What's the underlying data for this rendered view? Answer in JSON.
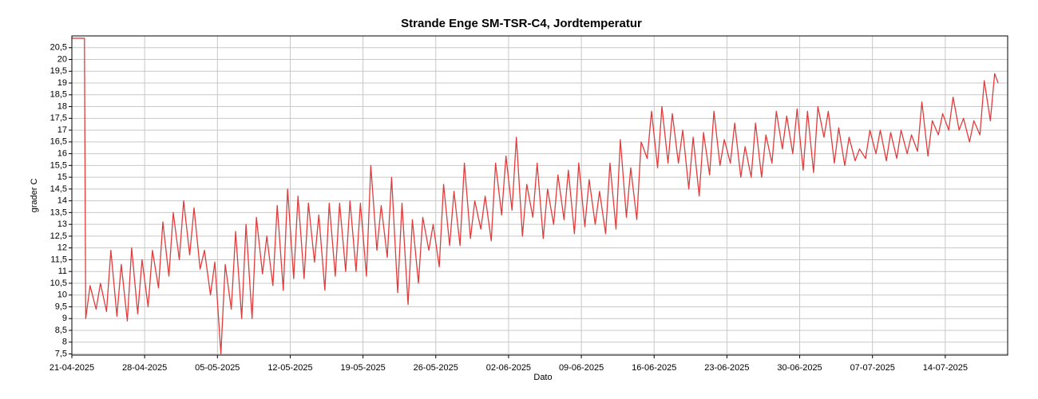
{
  "chart_data": {
    "type": "line",
    "title": "Strande Enge SM-TSR-C4, Jordtemperatur",
    "x_label": "Dato",
    "y_label": "grader C",
    "grid": true,
    "xlim": [
      "21-04-2025",
      "20-07-2025"
    ],
    "xticks": [
      "21-04-2025",
      "28-04-2025",
      "05-05-2025",
      "12-05-2025",
      "19-05-2025",
      "26-05-2025",
      "02-06-2025",
      "09-06-2025",
      "16-06-2025",
      "23-06-2025",
      "30-06-2025",
      "07-07-2025",
      "14-07-2025"
    ],
    "ylim": [
      7.45,
      21.0
    ],
    "yticks": [
      {
        "value": 7.5,
        "label": "7,5"
      },
      8,
      {
        "value": 8.5,
        "label": "8,5"
      },
      9,
      {
        "value": 9.5,
        "label": "9,5"
      },
      10,
      {
        "value": 10.5,
        "label": "10,5"
      },
      11,
      {
        "value": 11.5,
        "label": "11,5"
      },
      12,
      {
        "value": 12.5,
        "label": "12,5"
      },
      13,
      {
        "value": 13.5,
        "label": "13,5"
      },
      14,
      {
        "value": 14.5,
        "label": "14,5"
      },
      15,
      {
        "value": 15.5,
        "label": "15,5"
      },
      16,
      {
        "value": 16.5,
        "label": "16,5"
      },
      17,
      {
        "value": 17.5,
        "label": "17,5"
      },
      18,
      {
        "value": 18.5,
        "label": "18,5"
      },
      19,
      {
        "value": 19.5,
        "label": "19,5"
      },
      20,
      {
        "value": 20.5,
        "label": "20,5"
      }
    ],
    "series": [
      {
        "color": "#e03c3c",
        "x": [
          "21-04-2025 00:00",
          "22-04-2025 05:00",
          "22-04-2025 08:00",
          "22-04-2025 18:00",
          "23-04-2025 08:00",
          "23-04-2025 18:00",
          "24-04-2025 08:00",
          "24-04-2025 18:00",
          "25-04-2025 08:00",
          "25-04-2025 18:00",
          "26-04-2025 08:00",
          "26-04-2025 18:00",
          "27-04-2025 08:00",
          "27-04-2025 18:00",
          "28-04-2025 08:00",
          "28-04-2025 18:00",
          "29-04-2025 08:00",
          "29-04-2025 18:00",
          "30-04-2025 08:00",
          "30-04-2025 18:00",
          "01-05-2025 08:00",
          "01-05-2025 18:00",
          "02-05-2025 08:00",
          "02-05-2025 18:00",
          "03-05-2025 08:00",
          "03-05-2025 18:00",
          "04-05-2025 08:00",
          "04-05-2025 18:00",
          "05-05-2025 08:00",
          "05-05-2025 18:00",
          "06-05-2025 08:00",
          "06-05-2025 18:00",
          "07-05-2025 08:00",
          "07-05-2025 18:00",
          "08-05-2025 08:00",
          "08-05-2025 18:00",
          "09-05-2025 08:00",
          "09-05-2025 18:00",
          "10-05-2025 08:00",
          "10-05-2025 18:00",
          "11-05-2025 08:00",
          "11-05-2025 18:00",
          "12-05-2025 08:00",
          "12-05-2025 18:00",
          "13-05-2025 08:00",
          "13-05-2025 18:00",
          "14-05-2025 08:00",
          "14-05-2025 18:00",
          "15-05-2025 08:00",
          "15-05-2025 18:00",
          "16-05-2025 08:00",
          "16-05-2025 18:00",
          "17-05-2025 08:00",
          "17-05-2025 18:00",
          "18-05-2025 08:00",
          "18-05-2025 18:00",
          "19-05-2025 08:00",
          "19-05-2025 18:00",
          "20-05-2025 08:00",
          "20-05-2025 18:00",
          "21-05-2025 08:00",
          "21-05-2025 18:00",
          "22-05-2025 08:00",
          "22-05-2025 18:00",
          "23-05-2025 08:00",
          "23-05-2025 18:00",
          "24-05-2025 08:00",
          "24-05-2025 18:00",
          "25-05-2025 08:00",
          "25-05-2025 18:00",
          "26-05-2025 08:00",
          "26-05-2025 18:00",
          "27-05-2025 08:00",
          "27-05-2025 18:00",
          "28-05-2025 08:00",
          "28-05-2025 18:00",
          "29-05-2025 08:00",
          "29-05-2025 18:00",
          "30-05-2025 08:00",
          "30-05-2025 18:00",
          "31-05-2025 08:00",
          "31-05-2025 18:00",
          "01-06-2025 08:00",
          "01-06-2025 18:00",
          "02-06-2025 08:00",
          "02-06-2025 18:00",
          "03-06-2025 08:00",
          "03-06-2025 18:00",
          "04-06-2025 08:00",
          "04-06-2025 18:00",
          "05-06-2025 08:00",
          "05-06-2025 18:00",
          "06-06-2025 08:00",
          "06-06-2025 18:00",
          "07-06-2025 08:00",
          "07-06-2025 18:00",
          "08-06-2025 08:00",
          "08-06-2025 18:00",
          "09-06-2025 08:00",
          "09-06-2025 18:00",
          "10-06-2025 08:00",
          "10-06-2025 18:00",
          "11-06-2025 08:00",
          "11-06-2025 18:00",
          "12-06-2025 08:00",
          "12-06-2025 18:00",
          "13-06-2025 08:00",
          "13-06-2025 18:00",
          "14-06-2025 08:00",
          "14-06-2025 18:00",
          "15-06-2025 08:00",
          "15-06-2025 18:00",
          "16-06-2025 08:00",
          "16-06-2025 18:00",
          "17-06-2025 08:00",
          "17-06-2025 18:00",
          "18-06-2025 08:00",
          "18-06-2025 18:00",
          "19-06-2025 08:00",
          "19-06-2025 18:00",
          "20-06-2025 08:00",
          "20-06-2025 18:00",
          "21-06-2025 08:00",
          "21-06-2025 18:00",
          "22-06-2025 08:00",
          "22-06-2025 18:00",
          "23-06-2025 08:00",
          "23-06-2025 18:00",
          "24-06-2025 08:00",
          "24-06-2025 18:00",
          "25-06-2025 08:00",
          "25-06-2025 18:00",
          "26-06-2025 08:00",
          "26-06-2025 18:00",
          "27-06-2025 08:00",
          "27-06-2025 18:00",
          "28-06-2025 08:00",
          "28-06-2025 18:00",
          "29-06-2025 08:00",
          "29-06-2025 18:00",
          "30-06-2025 08:00",
          "30-06-2025 18:00",
          "01-07-2025 08:00",
          "01-07-2025 18:00",
          "02-07-2025 08:00",
          "02-07-2025 18:00",
          "03-07-2025 08:00",
          "03-07-2025 18:00",
          "04-07-2025 08:00",
          "04-07-2025 18:00",
          "05-07-2025 08:00",
          "05-07-2025 18:00",
          "06-07-2025 08:00",
          "06-07-2025 18:00",
          "07-07-2025 08:00",
          "07-07-2025 18:00",
          "08-07-2025 08:00",
          "08-07-2025 18:00",
          "09-07-2025 08:00",
          "09-07-2025 18:00",
          "10-07-2025 08:00",
          "10-07-2025 18:00",
          "11-07-2025 08:00",
          "11-07-2025 18:00",
          "12-07-2025 08:00",
          "12-07-2025 18:00",
          "13-07-2025 08:00",
          "13-07-2025 18:00",
          "14-07-2025 08:00",
          "14-07-2025 18:00",
          "15-07-2025 08:00",
          "15-07-2025 18:00",
          "16-07-2025 08:00",
          "16-07-2025 18:00",
          "17-07-2025 08:00",
          "17-07-2025 18:00",
          "18-07-2025 08:00",
          "18-07-2025 18:00",
          "19-07-2025 02:00"
        ],
        "values": [
          20.9,
          20.9,
          9.0,
          10.4,
          9.4,
          10.5,
          9.3,
          11.9,
          9.1,
          11.3,
          8.9,
          12.0,
          9.2,
          11.5,
          9.5,
          11.9,
          10.3,
          13.1,
          10.8,
          13.5,
          11.5,
          14.0,
          11.7,
          13.7,
          11.1,
          11.9,
          10.0,
          11.4,
          7.5,
          11.3,
          9.4,
          12.7,
          9.0,
          13.0,
          9.0,
          13.3,
          10.9,
          12.5,
          10.4,
          13.8,
          10.2,
          14.5,
          10.7,
          14.2,
          10.7,
          13.9,
          11.4,
          13.4,
          10.2,
          13.9,
          10.8,
          13.9,
          11.0,
          14.0,
          11.0,
          13.9,
          10.8,
          15.5,
          11.9,
          13.8,
          11.6,
          15.0,
          10.1,
          13.9,
          9.6,
          13.2,
          10.5,
          13.3,
          11.9,
          13.0,
          11.2,
          14.7,
          12.1,
          14.4,
          12.1,
          15.6,
          12.4,
          14.0,
          12.8,
          14.2,
          12.3,
          15.6,
          13.4,
          15.9,
          13.6,
          16.7,
          12.5,
          14.7,
          13.3,
          15.6,
          12.4,
          14.5,
          13.0,
          15.1,
          13.2,
          15.3,
          12.6,
          15.6,
          12.9,
          14.9,
          13.0,
          14.4,
          12.6,
          15.6,
          12.8,
          16.6,
          13.3,
          15.4,
          13.2,
          16.5,
          15.8,
          17.8,
          15.4,
          18.0,
          15.6,
          17.7,
          15.6,
          17.0,
          14.5,
          16.7,
          14.2,
          16.9,
          15.1,
          17.8,
          15.5,
          16.6,
          15.6,
          17.3,
          15.0,
          16.3,
          15.0,
          17.3,
          15.0,
          16.8,
          15.6,
          17.8,
          16.2,
          17.6,
          16.0,
          17.9,
          15.3,
          17.8,
          15.2,
          18.0,
          16.7,
          17.8,
          15.6,
          17.1,
          15.5,
          16.7,
          15.7,
          16.2,
          15.8,
          17.0,
          16.0,
          17.0,
          15.7,
          16.9,
          15.8,
          17.0,
          16.0,
          16.8,
          16.1,
          18.2,
          15.9,
          17.4,
          16.8,
          17.7,
          17.0,
          18.4,
          17.0,
          17.5,
          16.5,
          17.4,
          16.8,
          19.1,
          17.4,
          19.4,
          19.0
        ]
      }
    ]
  }
}
